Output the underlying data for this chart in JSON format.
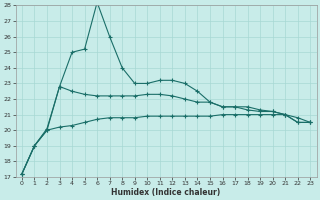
{
  "xlabel": "Humidex (Indice chaleur)",
  "bg_color": "#c8ece9",
  "grid_color": "#a8d8d4",
  "line_color": "#1a6e68",
  "x": [
    0,
    1,
    2,
    3,
    4,
    5,
    6,
    7,
    8,
    9,
    10,
    11,
    12,
    13,
    14,
    15,
    16,
    17,
    18,
    19,
    20,
    21,
    22,
    23
  ],
  "line1": [
    17.2,
    19.0,
    20.1,
    22.8,
    25.0,
    25.2,
    28.2,
    26.0,
    24.0,
    23.0,
    23.0,
    23.2,
    23.2,
    23.0,
    22.5,
    21.8,
    21.5,
    21.5,
    21.5,
    21.3,
    21.2,
    21.0,
    20.5,
    20.5
  ],
  "line2": [
    17.2,
    19.0,
    20.0,
    22.8,
    22.5,
    22.3,
    22.2,
    22.2,
    22.2,
    22.2,
    22.3,
    22.3,
    22.2,
    22.0,
    21.8,
    21.8,
    21.5,
    21.5,
    21.3,
    21.2,
    21.2,
    21.0,
    20.5,
    20.5
  ],
  "line3": [
    17.2,
    19.0,
    20.0,
    20.2,
    20.3,
    20.5,
    20.7,
    20.8,
    20.8,
    20.8,
    20.9,
    20.9,
    20.9,
    20.9,
    20.9,
    20.9,
    21.0,
    21.0,
    21.0,
    21.0,
    21.0,
    21.0,
    20.8,
    20.5
  ],
  "ylim": [
    17,
    28
  ],
  "xlim": [
    -0.5,
    23
  ]
}
